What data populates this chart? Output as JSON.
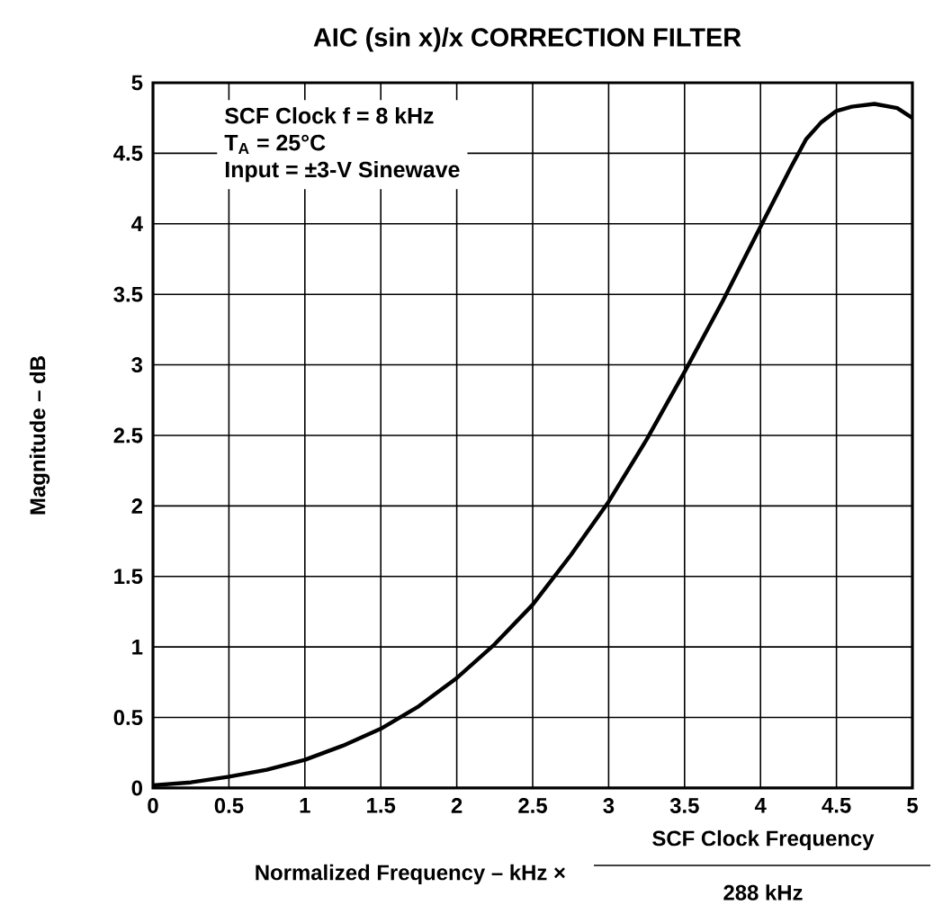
{
  "chart_data": {
    "type": "line",
    "title": "AIC (sin x)/x CORRECTION FILTER",
    "xlabel": "Normalized Frequency – kHz ×",
    "ylabel": "Magnitude – dB",
    "annotations": [
      "SCF Clock f = 8 kHz",
      "T$_{A}$ = 25°C",
      "Input = ±3-V Sinewave",
      "SCF Clock Frequency",
      "288 kHz"
    ],
    "x": [
      0,
      0.25,
      0.5,
      0.75,
      1,
      1.25,
      1.5,
      1.75,
      2,
      2.25,
      2.5,
      2.75,
      3,
      3.25,
      3.5,
      3.75,
      4,
      4.2,
      4.3,
      4.4,
      4.5,
      4.6,
      4.75,
      4.9,
      5
    ],
    "series": [
      {
        "color": "#000000",
        "values": [
          0.02,
          0.04,
          0.08,
          0.13,
          0.2,
          0.3,
          0.42,
          0.58,
          0.78,
          1.02,
          1.3,
          1.65,
          2.03,
          2.47,
          2.95,
          3.45,
          3.98,
          4.4,
          4.6,
          4.72,
          4.8,
          4.83,
          4.85,
          4.82,
          4.75
        ]
      }
    ],
    "xlim": [
      0,
      5
    ],
    "ylim": [
      0,
      5
    ],
    "xticks": [
      0,
      0.5,
      1,
      1.5,
      2,
      2.5,
      3,
      3.5,
      4,
      4.5,
      5
    ],
    "yticks": [
      0,
      0.5,
      1,
      1.5,
      2,
      2.5,
      3,
      3.5,
      4,
      4.5,
      5
    ],
    "grid": true
  }
}
